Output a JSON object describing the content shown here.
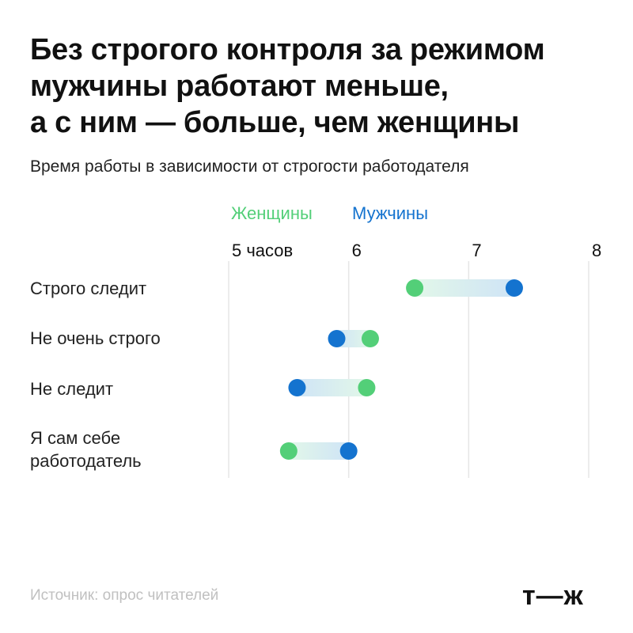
{
  "title_lines": [
    "Без строгого контроля за режимом",
    "мужчины работают меньше,",
    "а с ним — больше, чем женщины"
  ],
  "subtitle": "Время работы в зависимости от строгости работодателя",
  "legend": [
    {
      "label": "Женщины",
      "color": "#53cf78"
    },
    {
      "label": "Мужчины",
      "color": "#1473cf"
    }
  ],
  "source": "Источник: опрос читателей",
  "logo": "т—ж",
  "chart_data": {
    "type": "dumbbell",
    "x_ticks": [
      {
        "value": 5,
        "label": "5 часов"
      },
      {
        "value": 6,
        "label": "6"
      },
      {
        "value": 7,
        "label": "7"
      },
      {
        "value": 8,
        "label": "8"
      }
    ],
    "xlim": [
      5,
      8
    ],
    "grid": true,
    "legend_position": "top",
    "categories": [
      "Строго следит",
      "Не очень строго",
      "Не следит",
      "Я сам себе\nработодатель"
    ],
    "series": [
      {
        "name": "Женщины",
        "color": "#53cf78",
        "values": [
          6.55,
          6.18,
          6.15,
          5.5
        ]
      },
      {
        "name": "Мужчины",
        "color": "#1473cf",
        "values": [
          7.38,
          5.9,
          5.57,
          6.0
        ]
      }
    ]
  }
}
